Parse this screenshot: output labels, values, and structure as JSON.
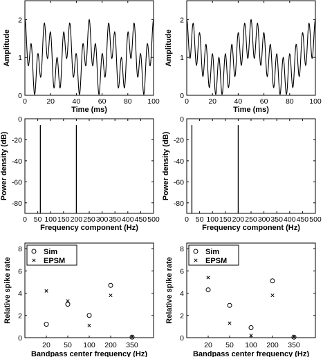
{
  "chart_data": [
    {
      "id": "waveform-left",
      "type": "line",
      "xlabel": "Time (ms)",
      "ylabel": "Amplitude",
      "xlim": [
        0,
        100
      ],
      "ylim": [
        0,
        2.5
      ],
      "xticks": [
        0,
        20,
        40,
        60,
        80,
        100
      ],
      "yticks": [
        0,
        1,
        2
      ],
      "signal": {
        "dc": 1.0,
        "components": [
          {
            "freq_hz": 60,
            "amp": 0.5
          },
          {
            "freq_hz": 200,
            "amp": 0.5
          }
        ]
      },
      "x_step": 0.2
    },
    {
      "id": "waveform-right",
      "type": "line",
      "xlabel": "Time (ms)",
      "ylabel": "Amplitude",
      "xlim": [
        0,
        100
      ],
      "ylim": [
        0,
        2.5
      ],
      "xticks": [
        0,
        20,
        40,
        60,
        80,
        100
      ],
      "yticks": [
        0,
        1,
        2
      ],
      "signal": {
        "dc": 1.0,
        "components": [
          {
            "freq_hz": 20,
            "amp": 0.5
          },
          {
            "freq_hz": 200,
            "amp": 0.5
          }
        ]
      },
      "x_step": 0.2
    },
    {
      "id": "spectrum-left",
      "type": "bar",
      "xlabel": "Frequency component (Hz)",
      "ylabel": "Power density (dB)",
      "xlim": [
        0,
        500
      ],
      "ylim": [
        -90,
        0
      ],
      "xticks": [
        0,
        50,
        100,
        150,
        200,
        250,
        300,
        350,
        400,
        450,
        500
      ],
      "yticks": [
        0,
        -20,
        -40,
        -60,
        -80
      ],
      "lines": [
        {
          "x": 60,
          "top": -6
        },
        {
          "x": 200,
          "top": -6
        }
      ]
    },
    {
      "id": "spectrum-right",
      "type": "bar",
      "xlabel": "Frequency component (Hz)",
      "ylabel": "Power density (dB)",
      "xlim": [
        0,
        500
      ],
      "ylim": [
        -90,
        0
      ],
      "xticks": [
        0,
        50,
        100,
        150,
        200,
        250,
        300,
        350,
        400,
        450,
        500
      ],
      "yticks": [
        0,
        -20,
        -40,
        -60,
        -80
      ],
      "lines": [
        {
          "x": 20,
          "top": -6
        },
        {
          "x": 200,
          "top": -6
        }
      ]
    },
    {
      "id": "spike-left",
      "type": "scatter",
      "xlabel": "Bandpass center frequency (Hz)",
      "ylabel": "Relative spike rate",
      "ylim": [
        0,
        8.5
      ],
      "yticks": [
        0,
        2,
        4,
        6,
        8
      ],
      "categories": [
        "20",
        "50",
        "100",
        "200",
        "350"
      ],
      "legend": "top-left",
      "series": [
        {
          "name": "Sim",
          "marker": "circle",
          "values": [
            1.2,
            3.0,
            2.0,
            4.7,
            0.05
          ]
        },
        {
          "name": "EPSM",
          "marker": "x",
          "values": [
            4.2,
            3.3,
            1.1,
            3.8,
            0.05
          ]
        }
      ]
    },
    {
      "id": "spike-right",
      "type": "scatter",
      "xlabel": "Bandpass center frequency (Hz)",
      "ylabel": "Relative spike rate",
      "ylim": [
        0,
        8.5
      ],
      "yticks": [
        0,
        2,
        4,
        6,
        8
      ],
      "categories": [
        "20",
        "50",
        "100",
        "200",
        "350"
      ],
      "legend": "top-left",
      "series": [
        {
          "name": "Sim",
          "marker": "circle",
          "values": [
            4.3,
            2.9,
            0.9,
            5.1,
            0.05
          ]
        },
        {
          "name": "EPSM",
          "marker": "x",
          "values": [
            5.4,
            1.3,
            0.2,
            3.8,
            0.05
          ]
        }
      ]
    }
  ]
}
